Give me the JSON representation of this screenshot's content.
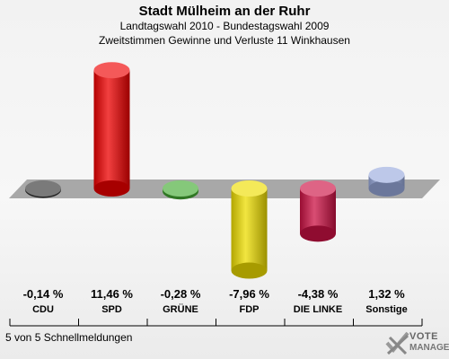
{
  "header": {
    "title": "Stadt Mülheim an der Ruhr",
    "subtitle1": "Landtagswahl 2010 - Bundestagswahl 2009",
    "subtitle2": "Zweitstimmen Gewinne und Verluste 11 Winkhausen"
  },
  "chart_data": {
    "type": "bar",
    "categories": [
      "CDU",
      "SPD",
      "GRÜNE",
      "FDP",
      "DIE LINKE",
      "Sonstige"
    ],
    "values": [
      -0.14,
      11.46,
      -0.28,
      -7.96,
      -4.38,
      1.32
    ],
    "value_labels": [
      "-0,14 %",
      "11,46 %",
      "-0,28 %",
      "-7,96 %",
      "-4,38 %",
      "1,32 %"
    ],
    "colors": [
      "#333333",
      "#ee0000",
      "#44aa33",
      "#eedd00",
      "#cc1144",
      "#99aadd"
    ],
    "ylim": [
      -12,
      12
    ],
    "grid": false
  },
  "footer": {
    "text": "5 von 5 Schnellmeldungen"
  },
  "logo": {
    "line1": "VOTE",
    "line2": "MANAGER",
    "icon": "check-x-logo-icon"
  }
}
